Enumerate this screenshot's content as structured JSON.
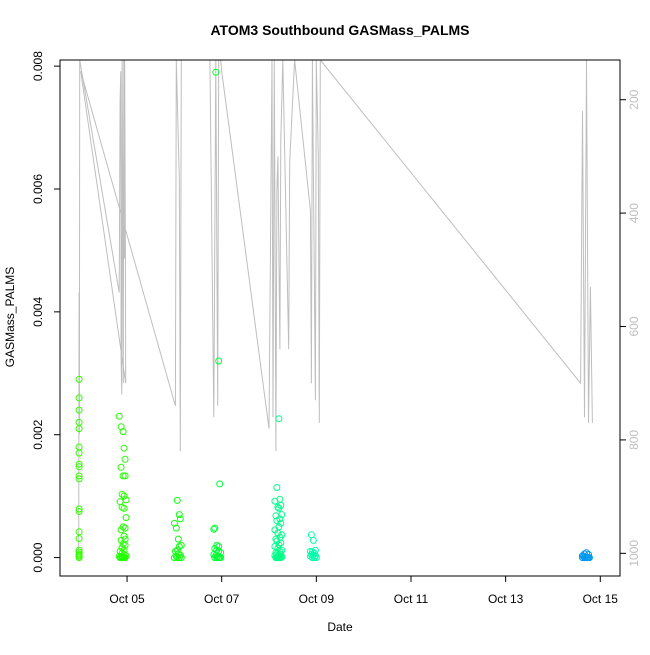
{
  "chart_data": {
    "type": "scatter",
    "title": "ATOM3 Southbound GASMass_PALMS",
    "xlabel": "Date",
    "ylabel": "GASMass_PALMS",
    "xlim": [
      "2017-10-03T14:00",
      "2017-10-15T10:00"
    ],
    "ylim": [
      -0.0003,
      0.0081
    ],
    "y_ticks": [
      {
        "value": 0.0,
        "label": "0.000"
      },
      {
        "value": 0.002,
        "label": "0.002"
      },
      {
        "value": 0.004,
        "label": "0.004"
      },
      {
        "value": 0.006,
        "label": "0.006"
      },
      {
        "value": 0.008,
        "label": "0.008"
      }
    ],
    "x_ticks": [
      {
        "value": "2017-10-05",
        "label": "Oct 05"
      },
      {
        "value": "2017-10-07",
        "label": "Oct 07"
      },
      {
        "value": "2017-10-09",
        "label": "Oct 09"
      },
      {
        "value": "2017-10-11",
        "label": "Oct 11"
      },
      {
        "value": "2017-10-13",
        "label": "Oct 13"
      },
      {
        "value": "2017-10-15",
        "label": "Oct 15"
      }
    ],
    "right_axis": {
      "ylim": [
        1040,
        130
      ],
      "reversed": true,
      "color": "#bebebe",
      "ticks": [
        {
          "value": 200,
          "label": "200"
        },
        {
          "value": 400,
          "label": "400"
        },
        {
          "value": 600,
          "label": "600"
        },
        {
          "value": 800,
          "label": "800"
        },
        {
          "value": 1000,
          "label": "1000"
        }
      ]
    },
    "pressure_trace": {
      "color": "#bebebe",
      "points": [
        [
          "2017-10-03T23:30",
          1000
        ],
        [
          "2017-10-03T23:40",
          540
        ],
        [
          "2017-10-03T23:50",
          790
        ],
        [
          "2017-10-04T00:00",
          130
        ],
        [
          "2017-10-04T20:00",
          540
        ],
        [
          "2017-10-04T20:30",
          200
        ],
        [
          "2017-10-04T20:50",
          150
        ],
        [
          "2017-10-04T21:00",
          660
        ],
        [
          "2017-10-04T21:20",
          720
        ],
        [
          "2017-10-04T21:30",
          130
        ],
        [
          "2017-10-04T21:50",
          400
        ],
        [
          "2017-10-04T22:05",
          700
        ],
        [
          "2017-10-04T22:20",
          130
        ],
        [
          "2017-10-04T22:40",
          480
        ],
        [
          "2017-10-04T22:50",
          130
        ],
        [
          "2017-10-04T23:10",
          480
        ],
        [
          "2017-10-04T23:20",
          700
        ],
        [
          "2017-10-04T00:30",
          150
        ],
        [
          "2017-10-06T00:30",
          740
        ],
        [
          "2017-10-06T01:00",
          130
        ],
        [
          "2017-10-06T02:30",
          340
        ],
        [
          "2017-10-06T03:00",
          820
        ],
        [
          "2017-10-06T03:30",
          130
        ],
        [
          "2017-10-06T18:00",
          130
        ],
        [
          "2017-10-06T20:00",
          760
        ],
        [
          "2017-10-06T21:00",
          130
        ],
        [
          "2017-10-06T22:00",
          740
        ],
        [
          "2017-10-06T22:30",
          130
        ],
        [
          "2017-10-06T23:30",
          130
        ],
        [
          "2017-10-07T00:00",
          150
        ],
        [
          "2017-10-08T00:00",
          780
        ],
        [
          "2017-10-08T01:30",
          130
        ],
        [
          "2017-10-08T02:00",
          760
        ],
        [
          "2017-10-08T02:40",
          130
        ],
        [
          "2017-10-08T03:30",
          820
        ],
        [
          "2017-10-08T04:00",
          360
        ],
        [
          "2017-10-08T04:30",
          300
        ],
        [
          "2017-10-08T05:30",
          640
        ],
        [
          "2017-10-08T06:00",
          270
        ],
        [
          "2017-10-08T07:00",
          130
        ],
        [
          "2017-10-08T10:00",
          640
        ],
        [
          "2017-10-08T10:30",
          310
        ],
        [
          "2017-10-08T13:00",
          130
        ],
        [
          "2017-10-08T21:00",
          395
        ],
        [
          "2017-10-08T21:30",
          700
        ],
        [
          "2017-10-08T22:00",
          130
        ],
        [
          "2017-10-08T23:30",
          730
        ],
        [
          "2017-10-09T00:00",
          130
        ],
        [
          "2017-10-09T01:00",
          300
        ],
        [
          "2017-10-09T01:30",
          770
        ],
        [
          "2017-10-09T02:00",
          130
        ],
        [
          "2017-10-14T14:00",
          700
        ],
        [
          "2017-10-14T15:00",
          220
        ],
        [
          "2017-10-14T16:00",
          760
        ],
        [
          "2017-10-14T17:00",
          130
        ],
        [
          "2017-10-14T18:00",
          770
        ],
        [
          "2017-10-14T19:00",
          530
        ],
        [
          "2017-10-14T20:00",
          770
        ]
      ]
    },
    "series": [
      {
        "color": "#33ff00",
        "x": [
          "2017-10-03T23:40",
          "2017-10-03T23:40",
          "2017-10-03T23:40",
          "2017-10-03T23:40",
          "2017-10-03T23:40",
          "2017-10-03T23:40",
          "2017-10-03T23:40",
          "2017-10-03T23:40",
          "2017-10-03T23:40",
          "2017-10-03T23:40",
          "2017-10-03T23:40",
          "2017-10-03T23:40",
          "2017-10-03T23:40",
          "2017-10-03T23:40",
          "2017-10-03T23:40",
          "2017-10-03T23:40",
          "2017-10-03T23:40",
          "2017-10-03T23:40",
          "2017-10-03T23:40",
          "2017-10-03T23:40",
          "2017-10-03T23:40"
        ],
        "y": [
          0.0029,
          0.0026,
          0.0024,
          0.0022,
          0.0021,
          0.0018,
          0.0017,
          0.00152,
          0.00148,
          0.00133,
          0.00128,
          0.00079,
          0.00075,
          0.00042,
          0.00031,
          0.00012,
          9e-05,
          6e-05,
          4e-05,
          2e-05,
          0.0
        ]
      },
      {
        "color": "#22ff00",
        "x": [
          "2017-10-04T20:00",
          "2017-10-04T21:00",
          "2017-10-04T22:00",
          "2017-10-04T22:30",
          "2017-10-04T23:00",
          "2017-10-04T21:00",
          "2017-10-04T22:00",
          "2017-10-04T23:00",
          "2017-10-04T21:30",
          "2017-10-04T22:30",
          "2017-10-04T23:30",
          "2017-10-04T20:30",
          "2017-10-04T21:30",
          "2017-10-04T22:30",
          "2017-10-04T23:30",
          "2017-10-04T22:00",
          "2017-10-04T23:00",
          "2017-10-04T21:00",
          "2017-10-04T22:30",
          "2017-10-04T23:00",
          "2017-10-04T21:00",
          "2017-10-04T22:00",
          "2017-10-04T23:00",
          "2017-10-04T21:30",
          "2017-10-04T22:30",
          "2017-10-04T20:30",
          "2017-10-04T21:30",
          "2017-10-04T22:30",
          "2017-10-04T23:30",
          "2017-10-04T20:00",
          "2017-10-04T21:00",
          "2017-10-04T22:00",
          "2017-10-04T23:00",
          "2017-10-04T20:30",
          "2017-10-04T21:30",
          "2017-10-04T22:30"
        ],
        "y": [
          0.0023,
          0.00213,
          0.00205,
          0.00178,
          0.0016,
          0.00147,
          0.00133,
          0.00133,
          0.00103,
          0.001,
          0.00094,
          0.00091,
          0.00082,
          0.0008,
          0.00065,
          0.0005,
          0.00048,
          0.00045,
          0.00035,
          0.0003,
          0.00028,
          0.00022,
          0.0002,
          0.00016,
          0.00012,
          0.0001,
          7e-05,
          5e-05,
          3e-05,
          2e-05,
          0.0,
          0.0,
          0.0,
          0.0,
          0.0,
          0.0
        ]
      },
      {
        "color": "#11ff11",
        "x": [
          "2017-10-06T00:00",
          "2017-10-06T01:30",
          "2017-10-06T02:30",
          "2017-10-06T03:00",
          "2017-10-06T01:00",
          "2017-10-06T02:00",
          "2017-10-06T03:30",
          "2017-10-06T02:30",
          "2017-10-06T01:30",
          "2017-10-06T00:30",
          "2017-10-06T02:00",
          "2017-10-06T03:00",
          "2017-10-06T01:00",
          "2017-10-06T02:30",
          "2017-10-06T03:30",
          "2017-10-06T00:00",
          "2017-10-06T01:30"
        ],
        "y": [
          0.00056,
          0.00093,
          0.0007,
          0.00063,
          0.00048,
          0.0003,
          0.0002,
          0.00018,
          0.00012,
          0.0001,
          6e-05,
          4e-05,
          2e-05,
          0.0,
          0.0,
          0.0,
          0.0
        ]
      },
      {
        "color": "#00ff33",
        "x": [
          "2017-10-06T21:00",
          "2017-10-06T22:30",
          "2017-10-06T23:00",
          "2017-10-06T20:30",
          "2017-10-06T20:00",
          "2017-10-06T21:30",
          "2017-10-06T22:30",
          "2017-10-06T20:30",
          "2017-10-06T21:30",
          "2017-10-06T22:30",
          "2017-10-06T23:30",
          "2017-10-06T20:00",
          "2017-10-06T21:00",
          "2017-10-06T22:00",
          "2017-10-06T23:00",
          "2017-10-06T20:30",
          "2017-10-06T21:30",
          "2017-10-06T22:30",
          "2017-10-06T23:30"
        ],
        "y": [
          0.0079,
          0.0032,
          0.0012,
          0.00048,
          0.00046,
          0.0002,
          0.00018,
          0.00015,
          0.00012,
          0.0001,
          8e-05,
          5e-05,
          3e-05,
          2e-05,
          0.0,
          0.0,
          0.0,
          0.0,
          0.0
        ]
      },
      {
        "color": "#00ff88",
        "x": [
          "2017-10-08T05:00",
          "2017-10-08T04:00",
          "2017-10-08T05:30",
          "2017-10-08T03:00",
          "2017-10-08T06:00",
          "2017-10-08T04:30",
          "2017-10-08T05:00",
          "2017-10-08T06:30",
          "2017-10-08T03:30",
          "2017-10-08T05:30",
          "2017-10-08T04:00",
          "2017-10-08T06:00",
          "2017-10-08T05:00",
          "2017-10-08T03:00",
          "2017-10-08T04:30",
          "2017-10-08T06:30",
          "2017-10-08T05:30",
          "2017-10-08T03:30",
          "2017-10-08T04:00",
          "2017-10-08T06:00",
          "2017-10-08T05:00",
          "2017-10-08T03:00",
          "2017-10-08T04:30",
          "2017-10-08T06:30",
          "2017-10-08T05:30",
          "2017-10-08T03:30",
          "2017-10-08T04:00",
          "2017-10-08T06:00",
          "2017-10-08T05:00",
          "2017-10-08T03:00",
          "2017-10-08T04:30",
          "2017-10-08T06:30",
          "2017-10-08T05:30",
          "2017-10-08T03:30",
          "2017-10-08T04:00",
          "2017-10-08T06:00",
          "2017-10-08T05:00",
          "2017-10-08T04:30"
        ],
        "y": [
          0.00226,
          0.00114,
          0.00095,
          0.00092,
          0.00085,
          0.00082,
          0.0008,
          0.0007,
          0.00068,
          0.00063,
          0.0006,
          0.00056,
          0.0005,
          0.00045,
          0.0004,
          0.00037,
          0.00033,
          0.0003,
          0.00027,
          0.00024,
          0.00021,
          0.00018,
          0.00015,
          0.00012,
          0.0001,
          8e-05,
          6e-05,
          5e-05,
          4e-05,
          3e-05,
          2e-05,
          1e-05,
          0.0,
          0.0,
          0.0,
          0.0,
          0.0,
          0.0
        ]
      },
      {
        "color": "#00ffaa",
        "x": [
          "2017-10-08T21:30",
          "2017-10-08T22:30",
          "2017-10-08T23:30",
          "2017-10-08T21:00",
          "2017-10-08T22:00",
          "2017-10-08T23:00",
          "2017-10-08T21:30",
          "2017-10-08T22:30",
          "2017-10-08T23:30",
          "2017-10-08T21:00",
          "2017-10-08T22:00",
          "2017-10-08T23:00",
          "2017-10-09T00:00"
        ],
        "y": [
          0.00037,
          0.00028,
          0.00012,
          0.0001,
          9e-05,
          7e-05,
          5e-05,
          4e-05,
          3e-05,
          2e-05,
          0.0,
          0.0,
          0.0
        ]
      },
      {
        "color": "#0099ee",
        "x": [
          "2017-10-14T15:00",
          "2017-10-14T16:00",
          "2017-10-14T17:00",
          "2017-10-14T18:00",
          "2017-10-14T15:30",
          "2017-10-14T16:30",
          "2017-10-14T17:30",
          "2017-10-14T18:30",
          "2017-10-14T16:00",
          "2017-10-14T17:00",
          "2017-10-14T15:00",
          "2017-10-14T18:00"
        ],
        "y": [
          3e-05,
          6e-05,
          8e-05,
          5e-05,
          2e-05,
          1e-05,
          0.0,
          0.0,
          0.0,
          0.0,
          0.0,
          0.0
        ]
      }
    ]
  }
}
